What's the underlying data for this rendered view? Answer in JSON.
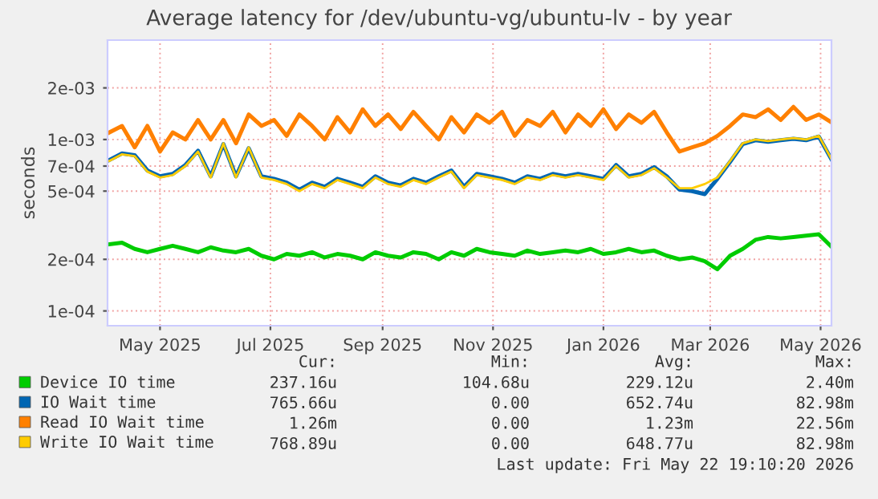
{
  "chart_data": {
    "type": "line",
    "title": "Average latency for /dev/ubuntu-vg/ubuntu-lv - by year",
    "ylabel": "seconds",
    "x": [
      "2025-04-18",
      "2025-04-25",
      "2025-05-02",
      "2025-05-09",
      "2025-05-16",
      "2025-05-23",
      "2025-05-30",
      "2025-06-06",
      "2025-06-13",
      "2025-06-20",
      "2025-06-27",
      "2025-07-04",
      "2025-07-11",
      "2025-07-18",
      "2025-07-25",
      "2025-08-01",
      "2025-08-08",
      "2025-08-15",
      "2025-08-22",
      "2025-08-29",
      "2025-09-05",
      "2025-09-12",
      "2025-09-19",
      "2025-09-26",
      "2025-10-03",
      "2025-10-10",
      "2025-10-17",
      "2025-10-24",
      "2025-10-31",
      "2025-11-07",
      "2025-11-14",
      "2025-11-21",
      "2025-11-28",
      "2025-12-05",
      "2025-12-12",
      "2025-12-19",
      "2025-12-26",
      "2026-01-02",
      "2026-01-09",
      "2026-01-16",
      "2026-01-23",
      "2026-01-30",
      "2026-02-06",
      "2026-02-13",
      "2026-02-20",
      "2026-02-27",
      "2026-03-06",
      "2026-03-13",
      "2026-03-20",
      "2026-03-27",
      "2026-04-03",
      "2026-04-10",
      "2026-04-17",
      "2026-04-24",
      "2026-05-01",
      "2026-05-08",
      "2026-05-15",
      "2026-05-22"
    ],
    "series": [
      {
        "name": "Device IO time",
        "color": "#00cc00",
        "values": [
          0.000245,
          0.00025,
          0.00023,
          0.00022,
          0.00023,
          0.00024,
          0.00023,
          0.00022,
          0.000235,
          0.000225,
          0.00022,
          0.00023,
          0.00021,
          0.0002,
          0.000215,
          0.00021,
          0.00022,
          0.000205,
          0.000215,
          0.00021,
          0.0002,
          0.00022,
          0.00021,
          0.000205,
          0.00022,
          0.000215,
          0.0002,
          0.00022,
          0.00021,
          0.00023,
          0.00022,
          0.000215,
          0.00021,
          0.000225,
          0.000215,
          0.00022,
          0.000225,
          0.00022,
          0.00023,
          0.000215,
          0.00022,
          0.00023,
          0.00022,
          0.000225,
          0.00021,
          0.0002,
          0.000205,
          0.000195,
          0.000175,
          0.00021,
          0.00023,
          0.00026,
          0.00027,
          0.000265,
          0.00027,
          0.000275,
          0.00028,
          0.000237
        ]
      },
      {
        "name": "IO Wait time",
        "color": "#0066b3",
        "values": [
          0.00076,
          0.00083,
          0.00081,
          0.00066,
          0.00061,
          0.00063,
          0.00071,
          0.00086,
          0.00061,
          0.00094,
          0.00061,
          0.00089,
          0.00061,
          0.00059,
          0.00056,
          0.00051,
          0.00056,
          0.00053,
          0.00059,
          0.00056,
          0.00053,
          0.00061,
          0.00056,
          0.00054,
          0.00059,
          0.00056,
          0.00061,
          0.00066,
          0.00053,
          0.00063,
          0.00061,
          0.00059,
          0.00056,
          0.00061,
          0.00059,
          0.00063,
          0.00061,
          0.00063,
          0.00061,
          0.00059,
          0.00071,
          0.00061,
          0.00063,
          0.00069,
          0.00061,
          0.00051,
          0.0005,
          0.00048,
          0.00059,
          0.00074,
          0.00094,
          0.00099,
          0.00097,
          0.00099,
          0.00101,
          0.00099,
          0.00104,
          0.000766
        ]
      },
      {
        "name": "Read IO Wait time",
        "color": "#ff8000",
        "values": [
          0.0011,
          0.0012,
          0.0009,
          0.0012,
          0.00085,
          0.0011,
          0.001,
          0.0013,
          0.001,
          0.0013,
          0.00095,
          0.0014,
          0.0012,
          0.0013,
          0.00105,
          0.0014,
          0.0012,
          0.001,
          0.00135,
          0.0011,
          0.0015,
          0.0012,
          0.0014,
          0.00115,
          0.00145,
          0.0012,
          0.001,
          0.00135,
          0.0011,
          0.0014,
          0.00125,
          0.00145,
          0.00105,
          0.0013,
          0.0012,
          0.00145,
          0.0011,
          0.0014,
          0.0012,
          0.0015,
          0.00115,
          0.0014,
          0.00125,
          0.00145,
          0.0011,
          0.00085,
          0.0009,
          0.00095,
          0.00105,
          0.0012,
          0.0014,
          0.00135,
          0.0015,
          0.0013,
          0.00155,
          0.0013,
          0.0014,
          0.00126
        ]
      },
      {
        "name": "Write IO Wait time",
        "color": "#ffcc00",
        "values": [
          0.00075,
          0.00082,
          0.0008,
          0.00065,
          0.0006,
          0.00062,
          0.0007,
          0.00085,
          0.0006,
          0.00095,
          0.0006,
          0.0009,
          0.0006,
          0.00058,
          0.00055,
          0.0005,
          0.00055,
          0.00052,
          0.00058,
          0.00055,
          0.00052,
          0.0006,
          0.00055,
          0.00053,
          0.00058,
          0.00055,
          0.0006,
          0.00065,
          0.00052,
          0.00062,
          0.0006,
          0.00058,
          0.00055,
          0.0006,
          0.00058,
          0.00062,
          0.0006,
          0.00062,
          0.0006,
          0.00058,
          0.0007,
          0.0006,
          0.00062,
          0.00068,
          0.0006,
          0.00052,
          0.00052,
          0.00055,
          0.0006,
          0.00075,
          0.00095,
          0.001,
          0.00098,
          0.001,
          0.00102,
          0.001,
          0.00105,
          0.000769
        ]
      }
    ],
    "log": "y",
    "ylim": [
      8.2e-05,
      0.0038
    ],
    "yticks": [
      {
        "value": 0.0001,
        "label": "1e-04"
      },
      {
        "value": 0.0002,
        "label": "2e-04"
      },
      {
        "value": 0.0005,
        "label": "5e-04"
      },
      {
        "value": 0.0007,
        "label": "7e-04"
      },
      {
        "value": 0.001,
        "label": "1e-03"
      },
      {
        "value": 0.002,
        "label": "2e-03"
      }
    ],
    "xlim": [
      "2025-04-17",
      "2026-05-22"
    ],
    "xticks": [
      {
        "value": "2025-05-16",
        "label": "May 2025"
      },
      {
        "value": "2025-07-16",
        "label": "Jul 2025"
      },
      {
        "value": "2025-09-16",
        "label": "Sep 2025"
      },
      {
        "value": "2025-11-16",
        "label": "Nov 2025"
      },
      {
        "value": "2026-01-16",
        "label": "Jan 2026"
      },
      {
        "value": "2026-03-16",
        "label": "Mar 2026"
      },
      {
        "value": "2026-05-16",
        "label": "May 2026"
      }
    ],
    "grid": true,
    "legend": "bottom",
    "line_style": "solid",
    "annotations": [
      "Cur:",
      "Min:",
      "Avg:",
      "Max:",
      "237.16u",
      "104.68u",
      "229.12u",
      "2.40m",
      "765.66u",
      "0.00",
      "652.74u",
      "82.98m",
      "1.26m",
      "0.00",
      "1.23m",
      "22.56m",
      "768.89u",
      "0.00",
      "648.77u",
      "82.98m",
      "Last update: Fri May 22 19:10:20 2026"
    ]
  }
}
